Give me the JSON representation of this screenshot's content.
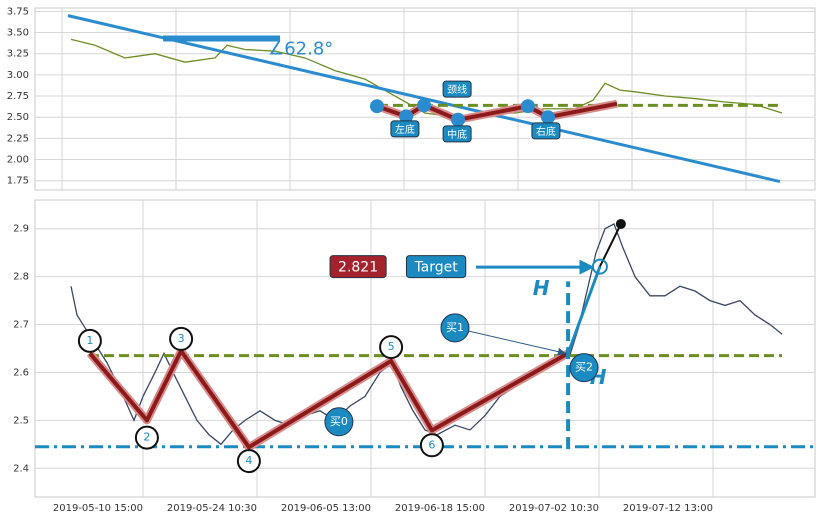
{
  "chart_data": [
    {
      "type": "line",
      "xlim": [
        0,
        260
      ],
      "ylim": [
        1.64,
        3.79
      ],
      "xticks": [
        9,
        47,
        85,
        123,
        161,
        199,
        237
      ],
      "yticks": [
        1.75,
        {
          "value": 2,
          "label": "2.00"
        },
        2.25,
        {
          "value": 2.5,
          "label": "2.50"
        },
        2.75,
        {
          "value": 3,
          "label": "3.00"
        },
        3.25,
        {
          "value": 3.5,
          "label": "3.50"
        },
        3.75
      ],
      "grid": true,
      "series": [
        {
          "color": "#6b8e23",
          "x": [
            12,
            20,
            30,
            40,
            50,
            60,
            64,
            70,
            80,
            90,
            100,
            110,
            120,
            130,
            140,
            150,
            160,
            170,
            180,
            186,
            190,
            195,
            200,
            210,
            220,
            230,
            240,
            249
          ],
          "values": [
            3.42,
            3.35,
            3.2,
            3.25,
            3.15,
            3.2,
            3.35,
            3.3,
            3.28,
            3.2,
            3.05,
            2.95,
            2.75,
            2.55,
            2.5,
            2.55,
            2.55,
            2.6,
            2.6,
            2.7,
            2.9,
            2.82,
            2.8,
            2.75,
            2.72,
            2.68,
            2.65,
            2.55
          ]
        }
      ],
      "annotations": {
        "lines": [
          {
            "x": [
              11,
              248.3
            ],
            "values": [
              3.7,
              1.74
            ],
            "color": "#2a8ccf",
            "style": "solid"
          },
          {
            "x": [
              42.7,
              81.7
            ],
            "values": [
              3.43,
              3.43
            ],
            "color": "#2a8ccf",
            "style": "thick"
          },
          {
            "x": [
              114.3,
              248.3
            ],
            "values": [
              2.64,
              2.64
            ],
            "color": "#6b8e23",
            "style": "dashed"
          },
          {
            "x": [
              114,
              123.7,
              129.7,
              141,
              164.3,
              171,
              194
            ],
            "values": [
              2.63,
              2.51,
              2.64,
              2.47,
              2.63,
              2.5,
              2.66
            ],
            "color": "#8b1a1a",
            "style": "zigzag"
          }
        ],
        "points": [
          {
            "x": 114,
            "y": 2.63,
            "style": "dot",
            "color": "#2a8ccf"
          },
          {
            "x": 123.7,
            "y": 2.51,
            "style": "dot",
            "color": "#2a8ccf"
          },
          {
            "x": 129.7,
            "y": 2.64,
            "style": "dot",
            "color": "#2a8ccf"
          },
          {
            "x": 141,
            "y": 2.47,
            "style": "dot",
            "color": "#2a8ccf"
          },
          {
            "x": 164.3,
            "y": 2.63,
            "style": "dot",
            "color": "#2a8ccf"
          },
          {
            "x": 171,
            "y": 2.5,
            "style": "dot",
            "color": "#2a8ccf"
          },
          {
            "x": 77.7,
            "y": 3.3,
            "style": "text",
            "color": "#2a8ccf",
            "text": "∠62.8°"
          },
          {
            "x": 123.3,
            "y": 2.362,
            "style": "tag",
            "color": "#1a8ac0",
            "text": "左底"
          },
          {
            "x": 140.7,
            "y": 2.303,
            "style": "tag",
            "color": "#1a8ac0",
            "text": "中底"
          },
          {
            "x": 170.3,
            "y": 2.338,
            "style": "tag",
            "color": "#1a8ac0",
            "text": "右底"
          },
          {
            "x": 140.7,
            "y": 2.832,
            "style": "tag",
            "color": "#1a8ac0",
            "text": "颈线"
          }
        ]
      }
    },
    {
      "type": "line",
      "xlim": [
        0,
        260
      ],
      "ylim": [
        2.34,
        2.96
      ],
      "xticks": [
        {
          "value": 36,
          "label": "2019-05-10 15:00"
        },
        {
          "value": 74,
          "label": "2019-05-24 10:30"
        },
        {
          "value": 112,
          "label": "2019-06-05 13:00"
        },
        {
          "value": 150,
          "label": "2019-06-18 15:00"
        },
        {
          "value": 188,
          "label": "2019-07-02 10:30"
        },
        {
          "value": 226,
          "label": "2019-07-12 13:00"
        }
      ],
      "yticks": [
        2.4,
        2.5,
        2.6,
        2.7,
        2.8,
        2.9
      ],
      "grid": true,
      "series": [
        {
          "color": "#3a4766",
          "x": [
            12,
            14,
            17,
            20,
            24,
            28,
            33,
            36,
            40,
            43,
            46,
            50,
            54,
            58,
            62,
            66,
            70,
            75,
            80,
            85,
            90,
            95,
            100,
            105,
            110,
            115,
            119,
            122,
            126,
            130,
            134,
            140,
            145,
            150,
            155,
            160,
            165,
            170,
            175,
            178,
            181,
            184,
            187,
            190,
            193,
            196,
            200,
            205,
            210,
            215,
            220,
            225,
            230,
            235,
            240,
            245,
            249
          ],
          "values": [
            2.78,
            2.72,
            2.69,
            2.66,
            2.62,
            2.57,
            2.5,
            2.55,
            2.6,
            2.64,
            2.6,
            2.55,
            2.5,
            2.47,
            2.45,
            2.48,
            2.5,
            2.52,
            2.5,
            2.49,
            2.51,
            2.52,
            2.5,
            2.53,
            2.55,
            2.6,
            2.62,
            2.57,
            2.52,
            2.48,
            2.47,
            2.49,
            2.48,
            2.51,
            2.55,
            2.57,
            2.59,
            2.61,
            2.64,
            2.63,
            2.69,
            2.77,
            2.85,
            2.9,
            2.91,
            2.86,
            2.8,
            2.76,
            2.76,
            2.78,
            2.77,
            2.75,
            2.74,
            2.75,
            2.72,
            2.7,
            2.68
          ]
        }
      ],
      "annotations": {
        "lines": [
          {
            "x": [
              18,
              249
            ],
            "values": [
              2.635,
              2.635
            ],
            "color": "#6b8e23",
            "style": "dashed"
          },
          {
            "x": [
              0,
              260
            ],
            "values": [
              2.445,
              2.445
            ],
            "color": "#1a8ac0",
            "style": "dashdot"
          },
          {
            "x": [
              18.3,
              37.3,
              48.7,
              71.3,
              118.7,
              132.3,
              177.7
            ],
            "values": [
              2.64,
              2.5,
              2.645,
              2.444,
              2.624,
              2.479,
              2.64
            ],
            "color": "#8b1a1a",
            "style": "zigzag"
          },
          {
            "x": [
              177.7,
              188.3
            ],
            "values": [
              2.64,
              2.821
            ],
            "color": "#1a8ac0",
            "style": "solid"
          },
          {
            "x": [
              188.3,
              195.3
            ],
            "values": [
              2.821,
              2.91
            ],
            "color": "#111111",
            "style": "thin"
          },
          {
            "x": [
              177.7,
              177.7
            ],
            "values": [
              2.44,
              2.79
            ],
            "color": "#1a8ac0",
            "style": "vdash"
          },
          {
            "x": [
              147,
              186
            ],
            "values": [
              2.82,
              2.82
            ],
            "color": "#1a8ac0",
            "style": "arrow"
          },
          {
            "x": [
              140,
              176.7
            ],
            "values": [
              2.693,
              2.64
            ],
            "color": "#2a5a8a",
            "style": "thinarrow"
          }
        ],
        "points": [
          {
            "x": 18.3,
            "y": 2.666,
            "style": "ring",
            "color": "#111111",
            "text": "1"
          },
          {
            "x": 37.3,
            "y": 2.464,
            "style": "ring",
            "color": "#111111",
            "text": "2"
          },
          {
            "x": 48.7,
            "y": 2.67,
            "style": "ring",
            "color": "#111111",
            "text": "3"
          },
          {
            "x": 71.3,
            "y": 2.415,
            "style": "ring",
            "color": "#111111",
            "text": "4"
          },
          {
            "x": 118.7,
            "y": 2.653,
            "style": "ring",
            "color": "#111111",
            "text": "5"
          },
          {
            "x": 132.3,
            "y": 2.448,
            "style": "ring",
            "color": "#111111",
            "text": "6"
          },
          {
            "x": 195.3,
            "y": 2.91,
            "style": "dot",
            "color": "#111111"
          },
          {
            "x": 188.3,
            "y": 2.821,
            "style": "hollow",
            "color": "#1a8ac0"
          },
          {
            "x": 107.7,
            "y": 2.821,
            "style": "tag",
            "color": "#a3222c",
            "text": "2.821"
          },
          {
            "x": 133.7,
            "y": 2.821,
            "style": "tag",
            "color": "#1a8ac0",
            "text": "Target"
          },
          {
            "x": 168.7,
            "y": 2.773,
            "style": "text",
            "color": "#1a8ac0",
            "text": "H"
          },
          {
            "x": 187.7,
            "y": 2.587,
            "style": "text",
            "color": "#1a8ac0",
            "text": "H"
          },
          {
            "x": 101.3,
            "y": 2.497,
            "style": "badge",
            "color": "#1a8ac0",
            "text": "买0"
          },
          {
            "x": 140,
            "y": 2.693,
            "style": "badge",
            "color": "#1a8ac0",
            "text": "买1"
          },
          {
            "x": 183,
            "y": 2.61,
            "style": "badge",
            "color": "#1a8ac0",
            "text": "买2"
          }
        ]
      }
    }
  ]
}
